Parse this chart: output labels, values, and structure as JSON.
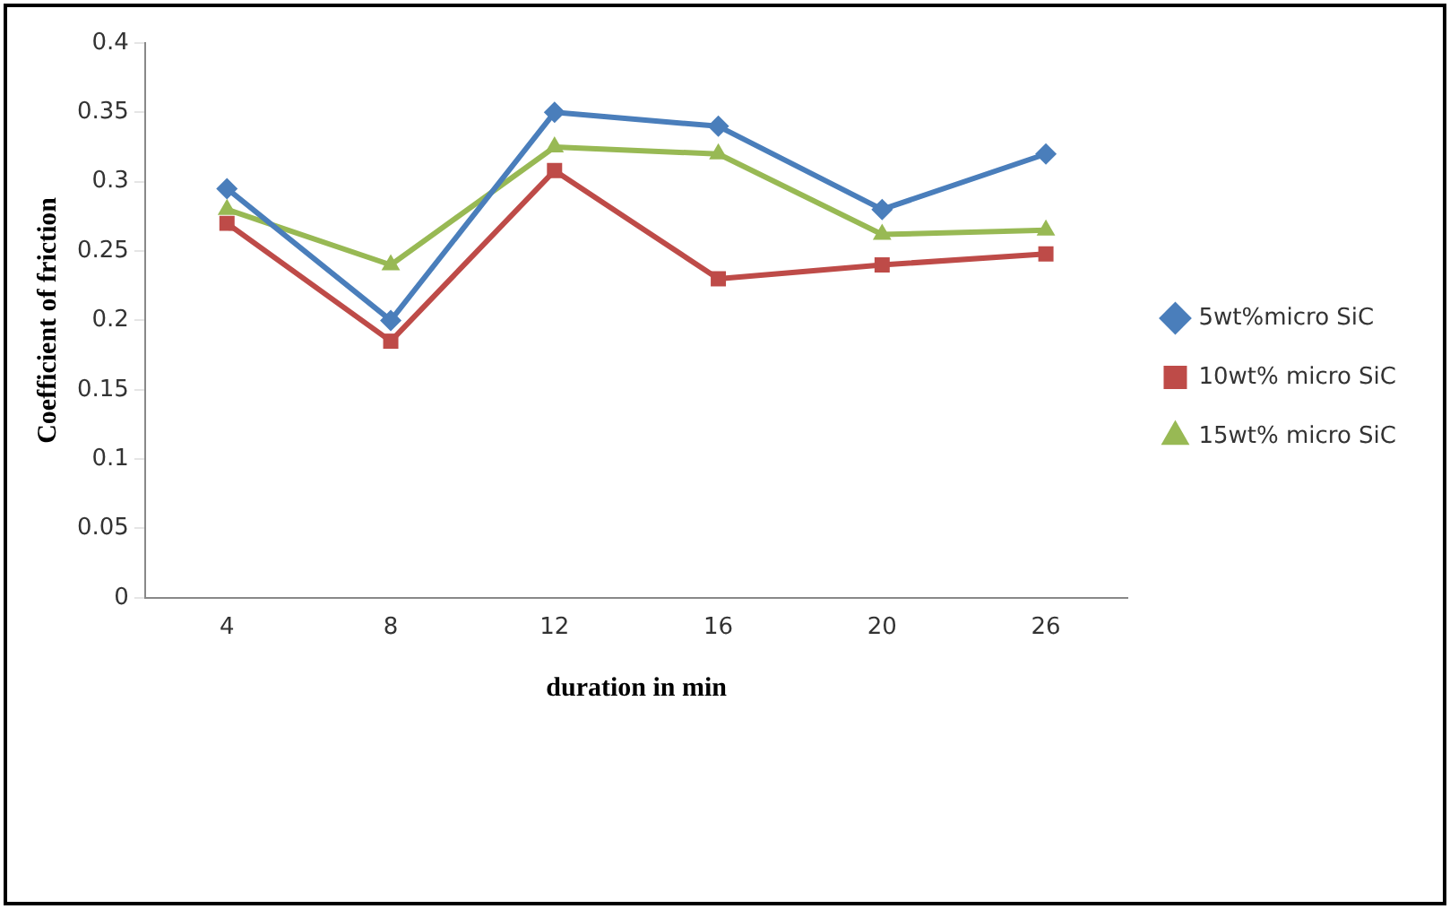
{
  "chart_data": {
    "type": "line",
    "xlabel": "duration in min",
    "ylabel": "Coefficient of friction",
    "categories": [
      "4",
      "8",
      "12",
      "16",
      "20",
      "26"
    ],
    "series": [
      {
        "name": "5wt%micro SiC",
        "color": "#4a7ebb",
        "marker": "diamond",
        "values": [
          0.295,
          0.2,
          0.35,
          0.34,
          0.28,
          0.32
        ]
      },
      {
        "name": "10wt% micro SiC",
        "color": "#be4b48",
        "marker": "square",
        "values": [
          0.27,
          0.185,
          0.308,
          0.23,
          0.24,
          0.248
        ]
      },
      {
        "name": "15wt% micro SiC",
        "color": "#98b954",
        "marker": "triangle",
        "values": [
          0.28,
          0.24,
          0.325,
          0.32,
          0.262,
          0.265
        ]
      }
    ],
    "ylim": [
      0,
      0.4
    ],
    "yticks": [
      0,
      0.05,
      0.1,
      0.15,
      0.2,
      0.25,
      0.3,
      0.35,
      0.4
    ],
    "grid": false,
    "legend": "right",
    "line_style": "solid"
  }
}
